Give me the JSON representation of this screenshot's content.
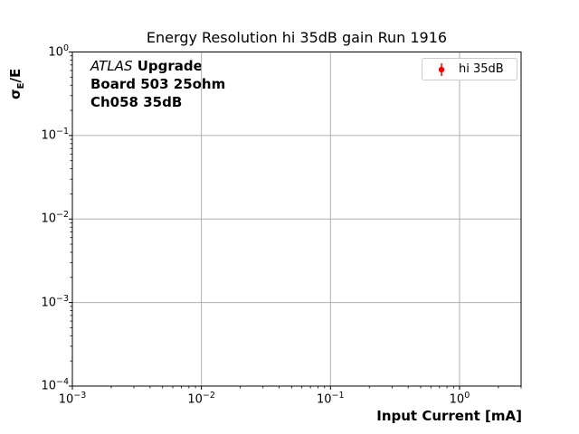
{
  "title": "Energy Resolution hi 35dB gain Run 1916",
  "annotation": {
    "atlas": "ATLAS",
    "upgrade": " Upgrade",
    "line2": "Board 503 25ohm",
    "line3": "Ch058 35dB"
  },
  "chart_data": {
    "type": "scatter",
    "title": "Energy Resolution hi 35dB gain Run 1916",
    "xlabel": "Input Current [mA]",
    "ylabel": "σ_E/E",
    "ylabel_parts": {
      "base": "σ",
      "subscript": "E",
      "suffix": "/E"
    },
    "xscale": "log",
    "yscale": "log",
    "xlim": [
      0.001,
      3.0
    ],
    "ylim": [
      0.0001,
      1.0
    ],
    "x_tick_exponents": [
      -3,
      -2,
      -1,
      0
    ],
    "y_tick_exponents": [
      0,
      -1,
      -2,
      -3,
      -4
    ],
    "grid": "major",
    "grid_color": "#b0b0b0",
    "spine_color": "#000000",
    "legend_position": "upper right",
    "series": [
      {
        "name": "hi 35dB",
        "color": "#ff0000",
        "marker": "errorbar-circle",
        "x": [],
        "y": []
      }
    ]
  }
}
